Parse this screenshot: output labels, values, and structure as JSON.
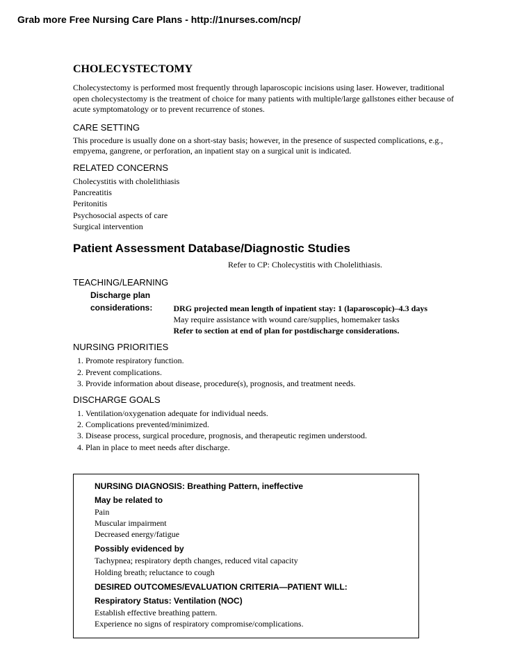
{
  "header": "Grab more Free Nursing Care Plans - http://1nurses.com/ncp/",
  "title": "CHOLECYSTECTOMY",
  "intro": "Cholecystectomy is performed most frequently through laparoscopic incisions using laser. However, traditional open cholecystectomy is the treatment of choice for many patients with multiple/large gallstones either because of acute symptomatology or to prevent recurrence of stones.",
  "careSetting": {
    "heading": "CARE SETTING",
    "text": "This procedure is usually done on a short-stay basis; however, in the presence of suspected complications, e.g., empyema, gangrene, or perforation, an inpatient stay on a surgical unit is indicated."
  },
  "relatedConcerns": {
    "heading": "RELATED CONCERNS",
    "items": [
      "Cholecystitis with cholelithiasis",
      "Pancreatitis",
      "Peritonitis",
      "Psychosocial aspects of care",
      "Surgical intervention"
    ]
  },
  "assessment": {
    "heading": "Patient Assessment Database/Diagnostic Studies",
    "refer": "Refer to CP: Cholecystitis with Cholelithiasis."
  },
  "teaching": {
    "heading": "TEACHING/LEARNING",
    "dischargeLabel1": "Discharge plan",
    "dischargeLabel2": "considerations:",
    "line1Bold": "DRG projected mean length of inpatient stay: 1 (laparoscopic)–4.3 days",
    "line2": "May require assistance with wound care/supplies, homemaker tasks",
    "line3Bold": "Refer to section at end of plan for postdischarge considerations."
  },
  "priorities": {
    "heading": "NURSING PRIORITIES",
    "items": [
      "Promote respiratory function.",
      "Prevent complications.",
      "Provide information about disease, procedure(s), prognosis, and treatment needs."
    ]
  },
  "goals": {
    "heading": "DISCHARGE GOALS",
    "items": [
      "Ventilation/oxygenation adequate for individual needs.",
      "Complications prevented/minimized.",
      "Disease process, surgical procedure, prognosis, and therapeutic regimen understood.",
      "Plan in place to meet needs after discharge."
    ]
  },
  "diagnosis": {
    "heading": "NURSING DIAGNOSIS: Breathing Pattern, ineffective",
    "relatedHead": "May be related to",
    "relatedItems": [
      "Pain",
      "Muscular impairment",
      "Decreased energy/fatigue"
    ],
    "evidenceHead": "Possibly evidenced by",
    "evidenceItems": [
      "Tachypnea; respiratory depth changes, reduced vital capacity",
      "Holding breath; reluctance to cough"
    ],
    "outcomesHead": "DESIRED OUTCOMES/EVALUATION CRITERIA—PATIENT WILL:",
    "respHead": "Respiratory Status: Ventilation (NOC)",
    "outcomeItems": [
      "Establish effective breathing pattern.",
      "Experience no signs of respiratory compromise/complications."
    ]
  }
}
